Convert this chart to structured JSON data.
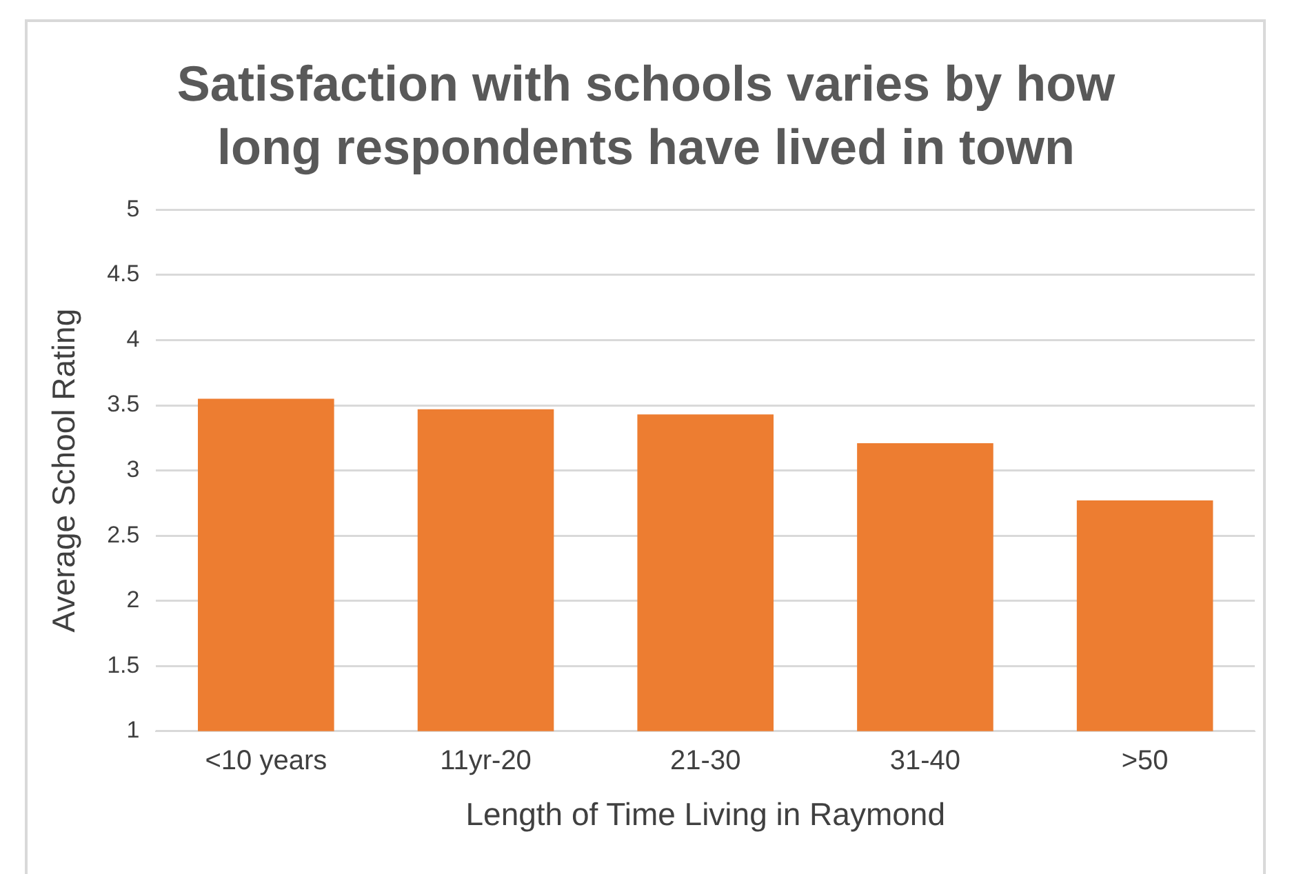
{
  "chart_data": {
    "type": "bar",
    "title": "Satisfaction with schools varies by how long respondents have lived in town",
    "xlabel": "Length of Time Living in Raymond",
    "ylabel": "Average School Rating",
    "categories": [
      "<10 years",
      "11yr-20",
      "21-30",
      "31-40",
      ">50"
    ],
    "values": [
      3.55,
      3.47,
      3.43,
      3.21,
      2.77
    ],
    "color": "#ed7d31",
    "ylim": [
      1,
      5
    ],
    "yticks": [
      1,
      1.5,
      2,
      2.5,
      3,
      3.5,
      4,
      4.5,
      5
    ],
    "grid": "y",
    "legend": false
  }
}
